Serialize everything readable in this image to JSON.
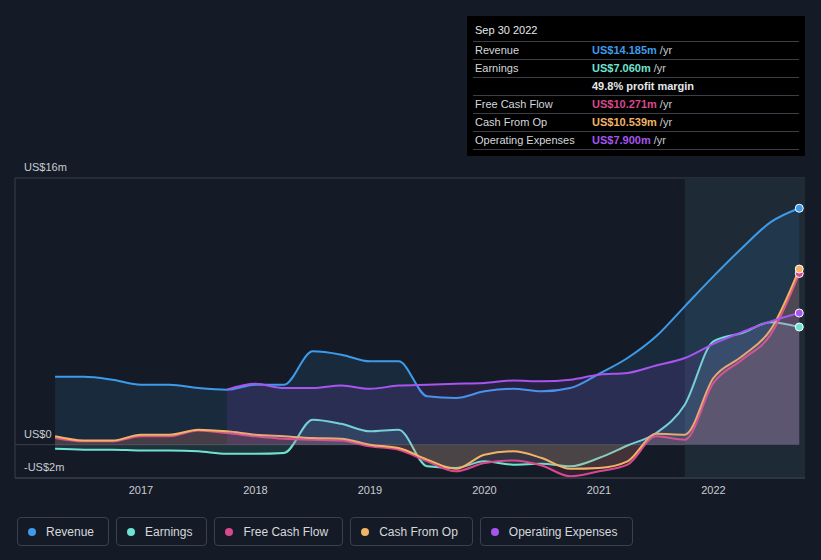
{
  "chart_data": {
    "type": "area",
    "x": [
      2016.25,
      2016.5,
      2016.75,
      2017.0,
      2017.25,
      2017.5,
      2017.75,
      2018.0,
      2018.25,
      2018.5,
      2018.75,
      2019.0,
      2019.25,
      2019.5,
      2019.75,
      2020.0,
      2020.25,
      2020.5,
      2020.75,
      2021.0,
      2021.25,
      2021.5,
      2021.75,
      2022.0,
      2022.25,
      2022.5,
      2022.75
    ],
    "xlim": [
      2015.9,
      2022.8
    ],
    "xticks": [
      2017,
      2018,
      2019,
      2020,
      2021,
      2022
    ],
    "ylim": [
      -2,
      16
    ],
    "yticks": [
      {
        "value": -2,
        "label": "-US$2m"
      },
      {
        "value": 0,
        "label": "US$0"
      },
      {
        "value": 16,
        "label": "US$16m"
      }
    ],
    "grid": true,
    "legend": "bottom",
    "shaded_range": [
      2021.75,
      2022.8
    ],
    "series": [
      {
        "name": "Revenue",
        "color": "#3d9be9",
        "values": [
          4.07,
          4.07,
          3.9,
          3.6,
          3.6,
          3.4,
          3.3,
          3.6,
          3.6,
          5.6,
          5.4,
          5.0,
          5.0,
          2.9,
          2.8,
          3.2,
          3.35,
          3.2,
          3.4,
          4.25,
          5.2,
          6.5,
          8.3,
          10.1,
          11.8,
          13.35,
          14.185
        ]
      },
      {
        "name": "Earnings",
        "color": "#6fe3d2",
        "values": [
          -0.25,
          -0.3,
          -0.3,
          -0.35,
          -0.35,
          -0.4,
          -0.55,
          -0.55,
          -0.5,
          1.5,
          1.25,
          0.8,
          0.9,
          -1.3,
          -1.4,
          -1.0,
          -1.2,
          -1.15,
          -1.3,
          -0.8,
          -0.05,
          0.7,
          2.4,
          6.2,
          6.7,
          7.35,
          7.06
        ]
      },
      {
        "name": "Free Cash Flow",
        "color": "#d9488c",
        "values": [
          0.4,
          0.2,
          0.2,
          0.5,
          0.5,
          0.85,
          0.7,
          0.5,
          0.35,
          0.3,
          0.25,
          -0.1,
          -0.3,
          -1.0,
          -1.6,
          -1.1,
          -0.95,
          -1.25,
          -1.9,
          -1.6,
          -1.2,
          0.5,
          0.3,
          3.7,
          5.1,
          6.6,
          10.271
        ]
      },
      {
        "name": "Cash From Op",
        "color": "#f2b366",
        "values": [
          0.5,
          0.25,
          0.25,
          0.6,
          0.6,
          0.9,
          0.8,
          0.6,
          0.5,
          0.4,
          0.35,
          0,
          -0.2,
          -0.9,
          -1.45,
          -0.6,
          -0.4,
          -0.8,
          -1.45,
          -1.4,
          -1.0,
          0.65,
          0.6,
          4.0,
          5.3,
          6.9,
          10.539
        ]
      },
      {
        "name": "Operating Expenses",
        "color": "#a855f0",
        "values": [
          null,
          null,
          null,
          null,
          null,
          null,
          3.3,
          3.65,
          3.4,
          3.4,
          3.55,
          3.35,
          3.55,
          3.6,
          3.65,
          3.7,
          3.85,
          3.8,
          3.9,
          4.2,
          4.3,
          4.75,
          5.2,
          6.05,
          6.75,
          7.4,
          7.9
        ]
      }
    ],
    "info_box": {
      "title": "Sep 30 2022",
      "rows": [
        {
          "label": "Revenue",
          "value": "US$14.185m",
          "suffix": "/yr"
        },
        {
          "label": "Earnings",
          "value": "US$7.060m",
          "suffix": "/yr"
        },
        {
          "label": null,
          "value": "49.8% profit margin",
          "suffix": null
        },
        {
          "label": "Free Cash Flow",
          "value": "US$10.271m",
          "suffix": "/yr"
        },
        {
          "label": "Cash From Op",
          "value": "US$10.539m",
          "suffix": "/yr"
        },
        {
          "label": "Operating Expenses",
          "value": "US$7.900m",
          "suffix": "/yr"
        }
      ]
    }
  }
}
